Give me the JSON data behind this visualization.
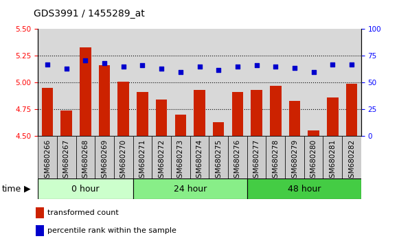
{
  "title": "GDS3991 / 1455289_at",
  "samples": [
    "GSM680266",
    "GSM680267",
    "GSM680268",
    "GSM680269",
    "GSM680270",
    "GSM680271",
    "GSM680272",
    "GSM680273",
    "GSM680274",
    "GSM680275",
    "GSM680276",
    "GSM680277",
    "GSM680278",
    "GSM680279",
    "GSM680280",
    "GSM680281",
    "GSM680282"
  ],
  "bar_values": [
    4.95,
    4.74,
    5.33,
    5.16,
    5.01,
    4.91,
    4.84,
    4.7,
    4.93,
    4.63,
    4.91,
    4.93,
    4.97,
    4.83,
    4.55,
    4.86,
    4.99
  ],
  "dot_values": [
    67,
    63,
    71,
    68,
    65,
    66,
    63,
    60,
    65,
    62,
    65,
    66,
    65,
    64,
    60,
    67,
    67
  ],
  "groups": [
    {
      "label": "0 hour",
      "start": 0,
      "end": 5,
      "color": "#ccffcc"
    },
    {
      "label": "24 hour",
      "start": 5,
      "end": 11,
      "color": "#88ee88"
    },
    {
      "label": "48 hour",
      "start": 11,
      "end": 17,
      "color": "#44cc44"
    }
  ],
  "ylim_left": [
    4.5,
    5.5
  ],
  "ylim_right": [
    0,
    100
  ],
  "yticks_left": [
    4.5,
    4.75,
    5.0,
    5.25,
    5.5
  ],
  "yticks_right": [
    0,
    25,
    50,
    75,
    100
  ],
  "bar_color": "#cc2200",
  "dot_color": "#0000cc",
  "grid_values": [
    4.75,
    5.0,
    5.25
  ],
  "plot_bg_color": "#d8d8d8",
  "bar_width": 0.6,
  "title_fontsize": 10,
  "axis_label_fontsize": 7.5,
  "tick_fontsize": 7.5,
  "group_label_fontsize": 9,
  "legend_fontsize": 8
}
